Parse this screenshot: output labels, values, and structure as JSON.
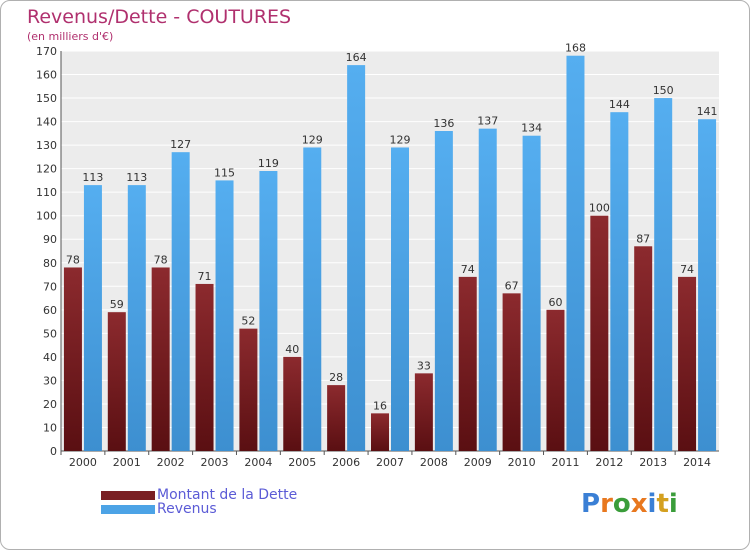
{
  "header": {
    "title": "Revenus/Dette - COUTURES",
    "subtitle": "(en milliers d'€)"
  },
  "legend": {
    "debt_label": "Montant de la Dette",
    "revenue_label": "Revenus"
  },
  "logo": {
    "text": "Proxiti",
    "colors": [
      "#3a7fd5",
      "#e8781f",
      "#3a9d3a",
      "#e8781f",
      "#3a7fd5",
      "#d4a020",
      "#3a9d3a"
    ]
  },
  "colors": {
    "debt": "#7a1f23",
    "revenue": "#4ca3e6",
    "title": "#b0306e"
  },
  "chart_data": {
    "type": "bar",
    "categories": [
      "2000",
      "2001",
      "2002",
      "2003",
      "2004",
      "2005",
      "2006",
      "2007",
      "2008",
      "2009",
      "2010",
      "2011",
      "2012",
      "2013",
      "2014"
    ],
    "series": [
      {
        "name": "Montant de la Dette",
        "values": [
          78,
          59,
          78,
          71,
          52,
          40,
          28,
          16,
          33,
          74,
          67,
          60,
          100,
          87,
          74
        ]
      },
      {
        "name": "Revenus",
        "values": [
          113,
          113,
          127,
          115,
          119,
          129,
          164,
          129,
          136,
          137,
          134,
          168,
          144,
          150,
          141
        ]
      }
    ],
    "title": "Revenus/Dette - COUTURES",
    "ylabel": "(en milliers d'€)",
    "ylim": [
      0,
      170
    ],
    "ytick_step": 10,
    "grid": true,
    "legend_position": "bottom-left"
  }
}
